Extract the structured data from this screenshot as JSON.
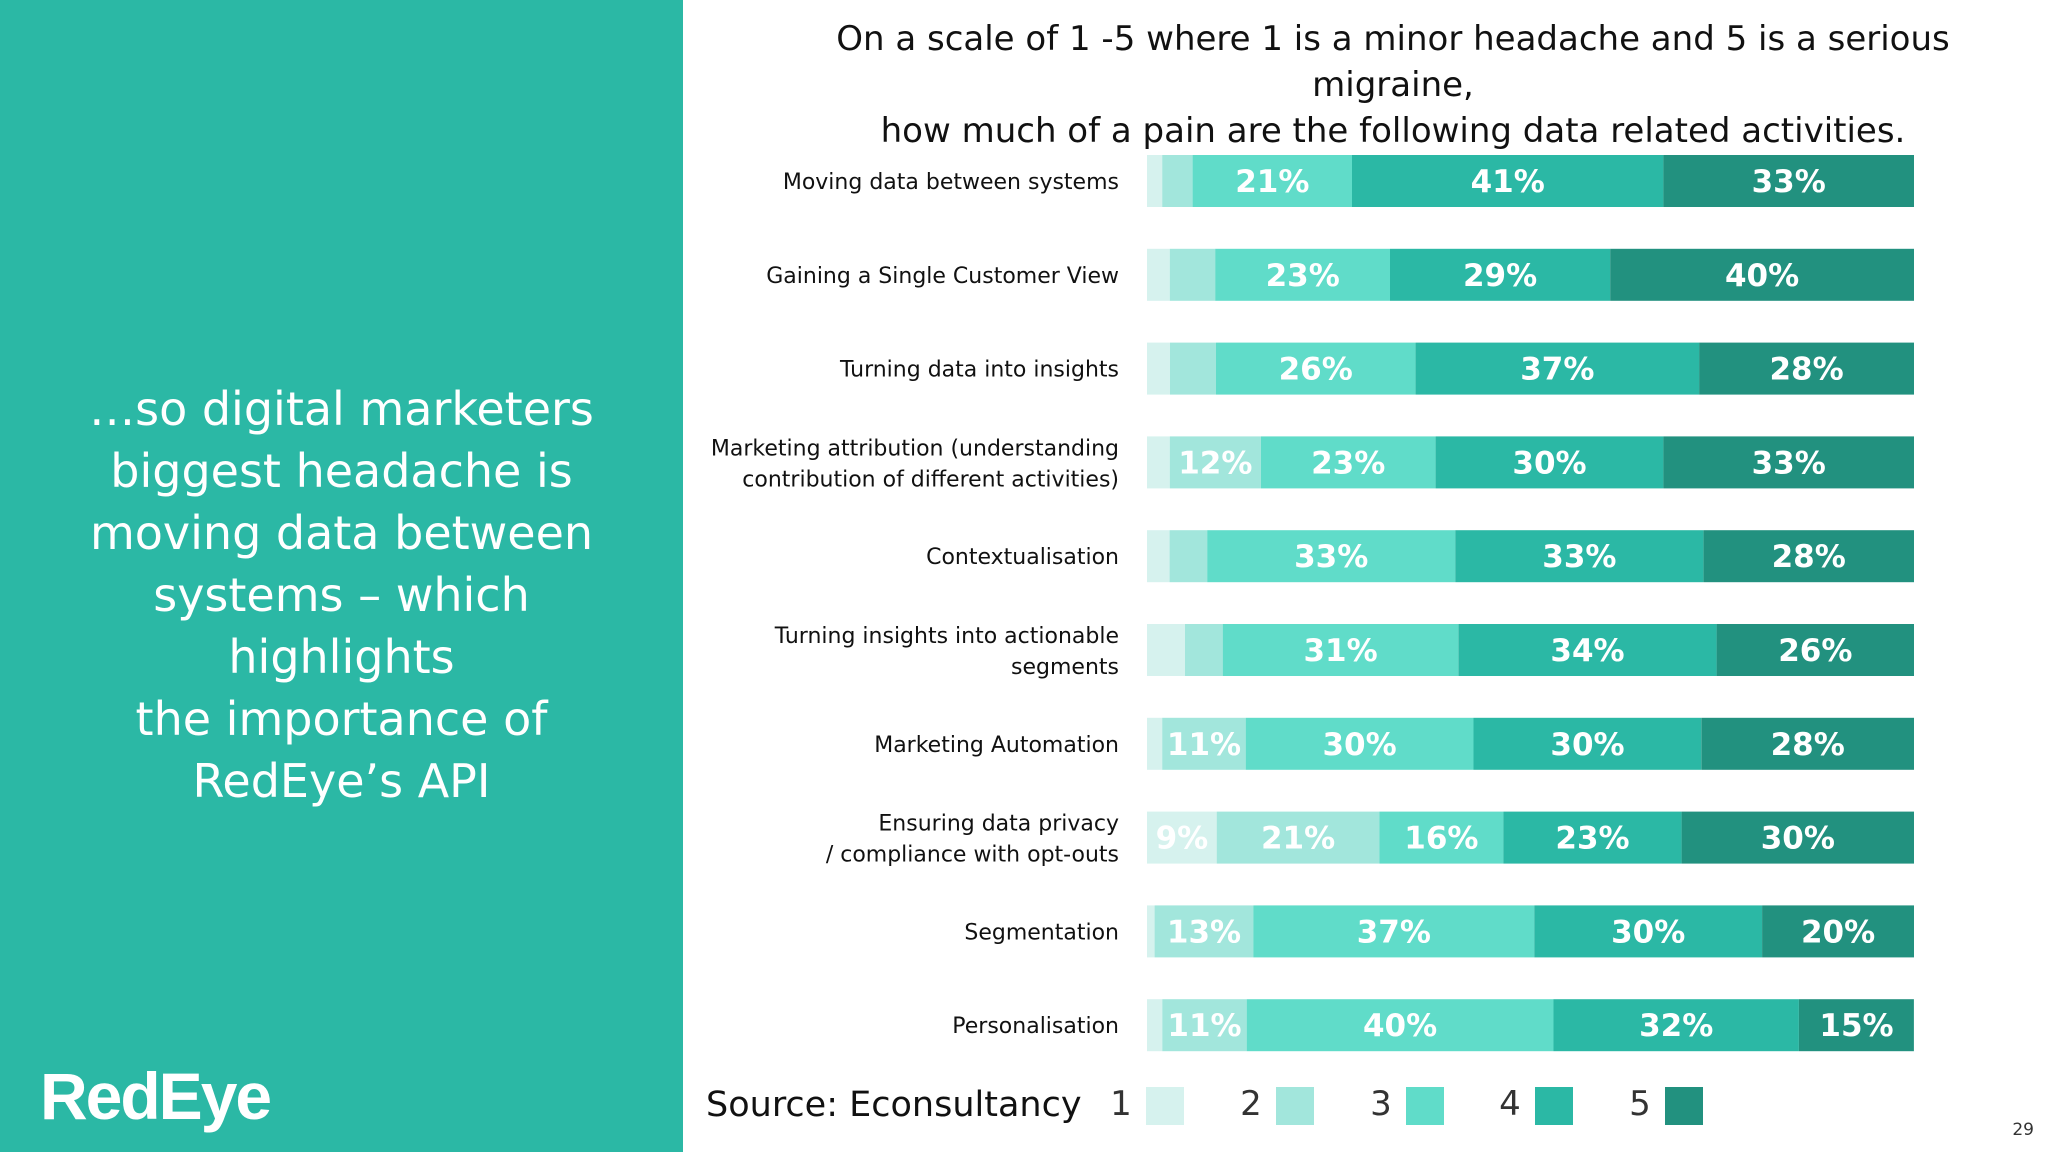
{
  "left_panel": {
    "tagline_lines": [
      "…so digital marketers",
      "biggest headache is",
      "moving data between",
      "systems – which highlights",
      "the importance of",
      "RedEye’s API"
    ],
    "logo": "RedEye"
  },
  "source": "Source: Econsultancy",
  "page_number": "29",
  "colors": {
    "panel": "#2bb8a5",
    "scale": [
      "#d6f2ee",
      "#a2e6dc",
      "#60dcc9",
      "#2bb8a5",
      "#22917f"
    ]
  },
  "chart_data": {
    "type": "bar",
    "orientation": "horizontal",
    "stacked": true,
    "title": "On a scale of 1 -5 where 1 is a minor headache and 5 is a serious migraine, how much of a pain are the following data related activities.",
    "title_lines": [
      "On a scale of 1 -5 where 1 is a minor headache and 5 is a serious migraine,",
      "how much of a pain are the following data related activities."
    ],
    "xlim": [
      0,
      100
    ],
    "categories": [
      [
        "Moving data between systems"
      ],
      [
        "Gaining a Single Customer View"
      ],
      [
        "Turning data into insights"
      ],
      [
        "Marketing attribution (understanding",
        "contribution of different activities)"
      ],
      [
        "Contextualisation"
      ],
      [
        "Turning insights into actionable",
        "segments"
      ],
      [
        "Marketing Automation"
      ],
      [
        "Ensuring data privacy",
        "/ compliance with opt-outs"
      ],
      [
        "Segmentation"
      ],
      [
        "Personalisation"
      ]
    ],
    "series": [
      {
        "name": "1",
        "values": [
          2,
          3,
          3,
          3,
          3,
          5,
          2,
          9,
          1,
          2
        ],
        "labels": [
          null,
          null,
          null,
          null,
          null,
          null,
          null,
          null,
          null,
          null
        ]
      },
      {
        "name": "2",
        "values": [
          4,
          6,
          6,
          12,
          5,
          5,
          11,
          21,
          13,
          11
        ],
        "labels": [
          null,
          null,
          null,
          "12%",
          null,
          null,
          "11%",
          "21%",
          "13%",
          "11%"
        ]
      },
      {
        "name": "3",
        "values": [
          21,
          23,
          26,
          23,
          33,
          31,
          30,
          16,
          37,
          40
        ],
        "labels": [
          "21%",
          "23%",
          "26%",
          "23%",
          "33%",
          "31%",
          "30%",
          "16%",
          "37%",
          "40%"
        ]
      },
      {
        "name": "4",
        "values": [
          41,
          29,
          37,
          30,
          33,
          34,
          30,
          23,
          30,
          32
        ],
        "labels": [
          "41%",
          "29%",
          "37%",
          "30%",
          "33%",
          "34%",
          "30%",
          "23%",
          "30%",
          "32%"
        ]
      },
      {
        "name": "5",
        "values": [
          33,
          40,
          28,
          33,
          28,
          26,
          28,
          30,
          20,
          15
        ],
        "labels": [
          "33%",
          "40%",
          "28%",
          "33%",
          "28%",
          "26%",
          "28%",
          "30%",
          "20%",
          "15%"
        ]
      }
    ],
    "extra_labels": [
      {
        "category_index": 7,
        "series_index": 0,
        "label": "9%"
      }
    ],
    "legend": {
      "position": "bottom",
      "entries": [
        "1",
        "2",
        "3",
        "4",
        "5"
      ]
    }
  }
}
